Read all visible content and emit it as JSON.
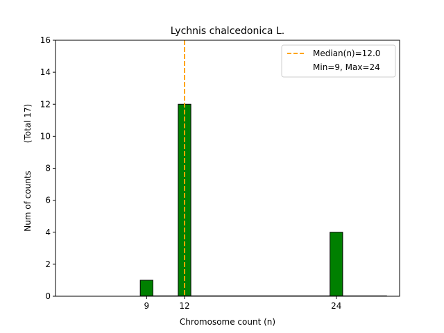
{
  "chart_data": {
    "type": "bar",
    "title": "Lychnis chalcedonica L.",
    "xlabel": "Chromosome count (n)",
    "ylabel": "Num of counts",
    "ylabel_note": "(Total 17)",
    "x": [
      9,
      12,
      24
    ],
    "values": [
      1,
      12,
      4
    ],
    "xticks": [
      9,
      12,
      24
    ],
    "yticks": [
      0,
      2,
      4,
      6,
      8,
      10,
      12,
      14,
      16
    ],
    "xlim": [
      1.8,
      29.0
    ],
    "ylim": [
      0,
      16
    ],
    "bar_color": "#008000",
    "bar_edge_color": "#000000",
    "median": {
      "value": 12.0,
      "color": "#FFA500"
    },
    "legend": {
      "position": "top-right",
      "entries": [
        "Median(n)=12.0",
        "Min=9, Max=24"
      ]
    }
  }
}
